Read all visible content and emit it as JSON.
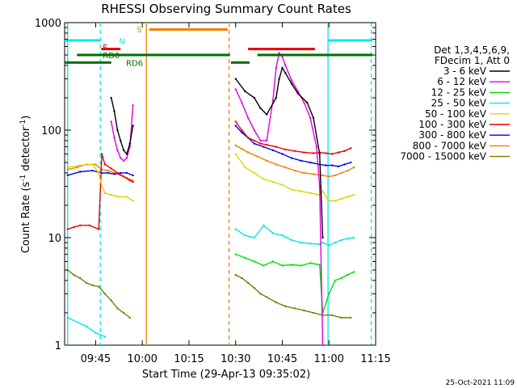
{
  "chart_data": {
    "type": "line",
    "title": "RHESSI Observing Summary Count Rates",
    "xlabel": "Start Time (29-Apr-13 09:35:02)",
    "ylabel_base": "Count Rate (s",
    "ylabel_sup1": "-1",
    "ylabel_mid": " detector",
    "ylabel_sup2": "-1",
    "ylabel_end": ")",
    "x_range_minutes": [
      575.03,
      675.0
    ],
    "y_scale": "log",
    "ylim": [
      1,
      1000
    ],
    "x_ticks": [
      {
        "t": 585,
        "label": "09:45"
      },
      {
        "t": 600,
        "label": "10:00"
      },
      {
        "t": 615,
        "label": "10:15"
      },
      {
        "t": 630,
        "label": "10:30"
      },
      {
        "t": 645,
        "label": "10:45"
      },
      {
        "t": 660,
        "label": "11:00"
      },
      {
        "t": 675,
        "label": "11:15"
      }
    ],
    "y_ticks": [
      {
        "v": 1,
        "label": "1"
      },
      {
        "v": 10,
        "label": "10"
      },
      {
        "v": 100,
        "label": "100"
      },
      {
        "v": 1000,
        "label": "1000"
      }
    ],
    "legend_header": [
      "Det 1,3,4,5,6,9,",
      "FDecim 1, Att 0"
    ],
    "legend_placement": "right",
    "series": [
      {
        "name": "3 - 6 keV",
        "color": "#000000",
        "points": [
          [
            590,
            200
          ],
          [
            591,
            150
          ],
          [
            592,
            100
          ],
          [
            593,
            80
          ],
          [
            594,
            65
          ],
          [
            595,
            60
          ],
          [
            596,
            75
          ],
          [
            597,
            110
          ],
          [
            630,
            300
          ],
          [
            633,
            230
          ],
          [
            636,
            200
          ],
          [
            638,
            160
          ],
          [
            640,
            140
          ],
          [
            643,
            200
          ],
          [
            644,
            300
          ],
          [
            645,
            380
          ],
          [
            646,
            340
          ],
          [
            648,
            270
          ],
          [
            650,
            220
          ],
          [
            653,
            180
          ],
          [
            655,
            130
          ],
          [
            657,
            60
          ],
          [
            658,
            10
          ]
        ]
      },
      {
        "name": "6 - 12 keV",
        "color": "#e000e0",
        "points": [
          [
            590,
            120
          ],
          [
            591,
            85
          ],
          [
            592,
            65
          ],
          [
            593,
            55
          ],
          [
            594,
            52
          ],
          [
            595,
            55
          ],
          [
            596,
            70
          ],
          [
            597,
            170
          ],
          [
            630,
            240
          ],
          [
            632,
            180
          ],
          [
            634,
            130
          ],
          [
            636,
            100
          ],
          [
            638,
            80
          ],
          [
            640,
            80
          ],
          [
            642,
            190
          ],
          [
            643,
            380
          ],
          [
            644,
            520
          ],
          [
            645,
            480
          ],
          [
            646,
            400
          ],
          [
            648,
            290
          ],
          [
            650,
            230
          ],
          [
            652,
            180
          ],
          [
            654,
            130
          ],
          [
            656,
            70
          ],
          [
            657,
            30
          ],
          [
            658,
            1
          ]
        ]
      },
      {
        "name": "12 - 25 keV",
        "color": "#00e000",
        "points": [
          [
            630,
            7
          ],
          [
            633,
            6.5
          ],
          [
            636,
            6
          ],
          [
            639,
            5.5
          ],
          [
            642,
            6
          ],
          [
            645,
            5.5
          ],
          [
            648,
            5.6
          ],
          [
            651,
            5.5
          ],
          [
            654,
            5.8
          ],
          [
            657,
            5.6
          ],
          [
            658,
            2
          ],
          [
            660,
            3
          ],
          [
            662,
            4
          ],
          [
            664,
            4.2
          ],
          [
            666,
            4.5
          ],
          [
            668,
            4.8
          ]
        ]
      },
      {
        "name": "25 - 50 keV",
        "color": "#00e8e8",
        "points": [
          [
            576,
            1.8
          ],
          [
            582,
            1.5
          ],
          [
            585,
            1.3
          ],
          [
            588,
            1.2
          ],
          [
            630,
            12
          ],
          [
            633,
            10.5
          ],
          [
            636,
            10
          ],
          [
            639,
            13
          ],
          [
            642,
            11
          ],
          [
            645,
            10.5
          ],
          [
            648,
            9.5
          ],
          [
            651,
            9
          ],
          [
            654,
            8.8
          ],
          [
            657,
            8.7
          ],
          [
            658,
            9
          ],
          [
            660,
            8.5
          ],
          [
            662,
            9
          ],
          [
            664,
            9.5
          ],
          [
            666,
            9.8
          ],
          [
            668,
            10
          ]
        ]
      },
      {
        "name": "50 - 100 keV",
        "color": "#d8d800",
        "points": [
          [
            576,
            45
          ],
          [
            580,
            47
          ],
          [
            584,
            48
          ],
          [
            586,
            40
          ],
          [
            587,
            30
          ],
          [
            588,
            26
          ],
          [
            590,
            25
          ],
          [
            592,
            24
          ],
          [
            595,
            24
          ],
          [
            597,
            22
          ],
          [
            630,
            60
          ],
          [
            633,
            45
          ],
          [
            636,
            40
          ],
          [
            639,
            35
          ],
          [
            642,
            33
          ],
          [
            645,
            31
          ],
          [
            648,
            28
          ],
          [
            651,
            27
          ],
          [
            654,
            26
          ],
          [
            657,
            25
          ],
          [
            658,
            27
          ],
          [
            660,
            22
          ],
          [
            662,
            22
          ],
          [
            664,
            23
          ],
          [
            666,
            24
          ],
          [
            668,
            25
          ]
        ]
      },
      {
        "name": "100 - 300 keV",
        "color": "#e80000",
        "points": [
          [
            576,
            12
          ],
          [
            578,
            12.5
          ],
          [
            580,
            13
          ],
          [
            583,
            13
          ],
          [
            586,
            12
          ],
          [
            587,
            60
          ],
          [
            588,
            48
          ],
          [
            590,
            44
          ],
          [
            592,
            40
          ],
          [
            594,
            37
          ],
          [
            596,
            34
          ],
          [
            597,
            33
          ],
          [
            630,
            120
          ],
          [
            632,
            100
          ],
          [
            634,
            85
          ],
          [
            636,
            80
          ],
          [
            638,
            75
          ],
          [
            640,
            73
          ],
          [
            643,
            70
          ],
          [
            646,
            66
          ],
          [
            649,
            64
          ],
          [
            652,
            62
          ],
          [
            655,
            61
          ],
          [
            657,
            62
          ],
          [
            659,
            61
          ],
          [
            661,
            60
          ],
          [
            663,
            62
          ],
          [
            665,
            64
          ],
          [
            667,
            68
          ]
        ]
      },
      {
        "name": "300 - 800 keV",
        "color": "#0000ee",
        "points": [
          [
            576,
            38
          ],
          [
            580,
            41
          ],
          [
            584,
            42
          ],
          [
            587,
            40
          ],
          [
            589,
            40
          ],
          [
            591,
            39
          ],
          [
            593,
            40
          ],
          [
            595,
            40
          ],
          [
            597,
            38
          ],
          [
            630,
            110
          ],
          [
            632,
            95
          ],
          [
            634,
            85
          ],
          [
            636,
            75
          ],
          [
            639,
            70
          ],
          [
            642,
            65
          ],
          [
            645,
            60
          ],
          [
            648,
            55
          ],
          [
            651,
            52
          ],
          [
            654,
            50
          ],
          [
            657,
            48
          ],
          [
            659,
            47
          ],
          [
            661,
            47
          ],
          [
            663,
            46
          ],
          [
            665,
            48
          ],
          [
            667,
            50
          ]
        ]
      },
      {
        "name": "800 - 7000 keV",
        "color": "#f08000",
        "points": [
          [
            576,
            43
          ],
          [
            579,
            45
          ],
          [
            582,
            48
          ],
          [
            585,
            48
          ],
          [
            587,
            43
          ],
          [
            589,
            42
          ],
          [
            591,
            40
          ],
          [
            593,
            38
          ],
          [
            595,
            36
          ],
          [
            597,
            34
          ],
          [
            630,
            72
          ],
          [
            632,
            67
          ],
          [
            634,
            62
          ],
          [
            637,
            57
          ],
          [
            640,
            52
          ],
          [
            643,
            48
          ],
          [
            646,
            45
          ],
          [
            649,
            42
          ],
          [
            652,
            40
          ],
          [
            655,
            39
          ],
          [
            658,
            38
          ],
          [
            660,
            37
          ],
          [
            662,
            38
          ],
          [
            664,
            40
          ],
          [
            666,
            42
          ],
          [
            668,
            45
          ]
        ]
      },
      {
        "name": "7000 - 15000 keV",
        "color": "#7a7a00",
        "points": [
          [
            576,
            5
          ],
          [
            578,
            4.5
          ],
          [
            580,
            4.2
          ],
          [
            582,
            3.8
          ],
          [
            584,
            3.6
          ],
          [
            586,
            3.5
          ],
          [
            588,
            3.0
          ],
          [
            590,
            2.6
          ],
          [
            592,
            2.2
          ],
          [
            594,
            2.0
          ],
          [
            596,
            1.8
          ],
          [
            630,
            4.5
          ],
          [
            632,
            4.2
          ],
          [
            634,
            3.8
          ],
          [
            636,
            3.4
          ],
          [
            638,
            3.0
          ],
          [
            640,
            2.8
          ],
          [
            643,
            2.5
          ],
          [
            646,
            2.3
          ],
          [
            649,
            2.2
          ],
          [
            652,
            2.1
          ],
          [
            655,
            2.0
          ],
          [
            658,
            1.9
          ],
          [
            661,
            1.9
          ],
          [
            664,
            1.8
          ],
          [
            667,
            1.8
          ]
        ]
      }
    ],
    "vlines": [
      {
        "t": 576.0,
        "color": "#00e8e8",
        "style": "solid"
      },
      {
        "t": 586.5,
        "color": "#00e8e8",
        "style": "dashed"
      },
      {
        "t": 601.3,
        "color": "#f08000",
        "style": "solid"
      },
      {
        "t": 627.9,
        "color": "#f08000",
        "style": "dashed"
      },
      {
        "t": 659.7,
        "color": "#00e8e8",
        "style": "solid"
      },
      {
        "t": 673.6,
        "color": "#00e8e8",
        "style": "dashed"
      }
    ],
    "bars": [
      {
        "label": "N",
        "color": "#00e8e8",
        "y": 683,
        "segments": [
          [
            575.0,
            586.5
          ],
          [
            659.7,
            674.0
          ]
        ]
      },
      {
        "label": "F",
        "color": "#e80000",
        "y": 568,
        "segments": [
          [
            586.8,
            593.0
          ],
          [
            634.0,
            655.5
          ]
        ]
      },
      {
        "label": "S",
        "color": "#f08000",
        "y": 863,
        "segments": [
          [
            602.2,
            627.5
          ]
        ]
      },
      {
        "label": "RD0",
        "color": "#007000",
        "y": 500,
        "segments": [
          [
            579.0,
            628.2
          ],
          [
            637.0,
            674.0
          ]
        ]
      },
      {
        "label": "RD6",
        "color": "#007000",
        "y": 425,
        "segments": [
          [
            575.0,
            590.0
          ],
          [
            628.5,
            634.5
          ]
        ]
      }
    ],
    "bar_labels": [
      {
        "label": "N",
        "t": 593.5,
        "y": 630,
        "color": "#00e8e8"
      },
      {
        "label": "F",
        "t": 588.0,
        "y": 555,
        "color": "#e80000"
      },
      {
        "label": "RD0",
        "t": 590.0,
        "y": 468,
        "color": "#007000"
      },
      {
        "label": "S",
        "t": 599.0,
        "y": 815,
        "color": "#f08000"
      },
      {
        "label": "RD6",
        "t": 597.5,
        "y": 396,
        "color": "#007000"
      }
    ],
    "footer": "25-Oct-2021 11:09"
  }
}
